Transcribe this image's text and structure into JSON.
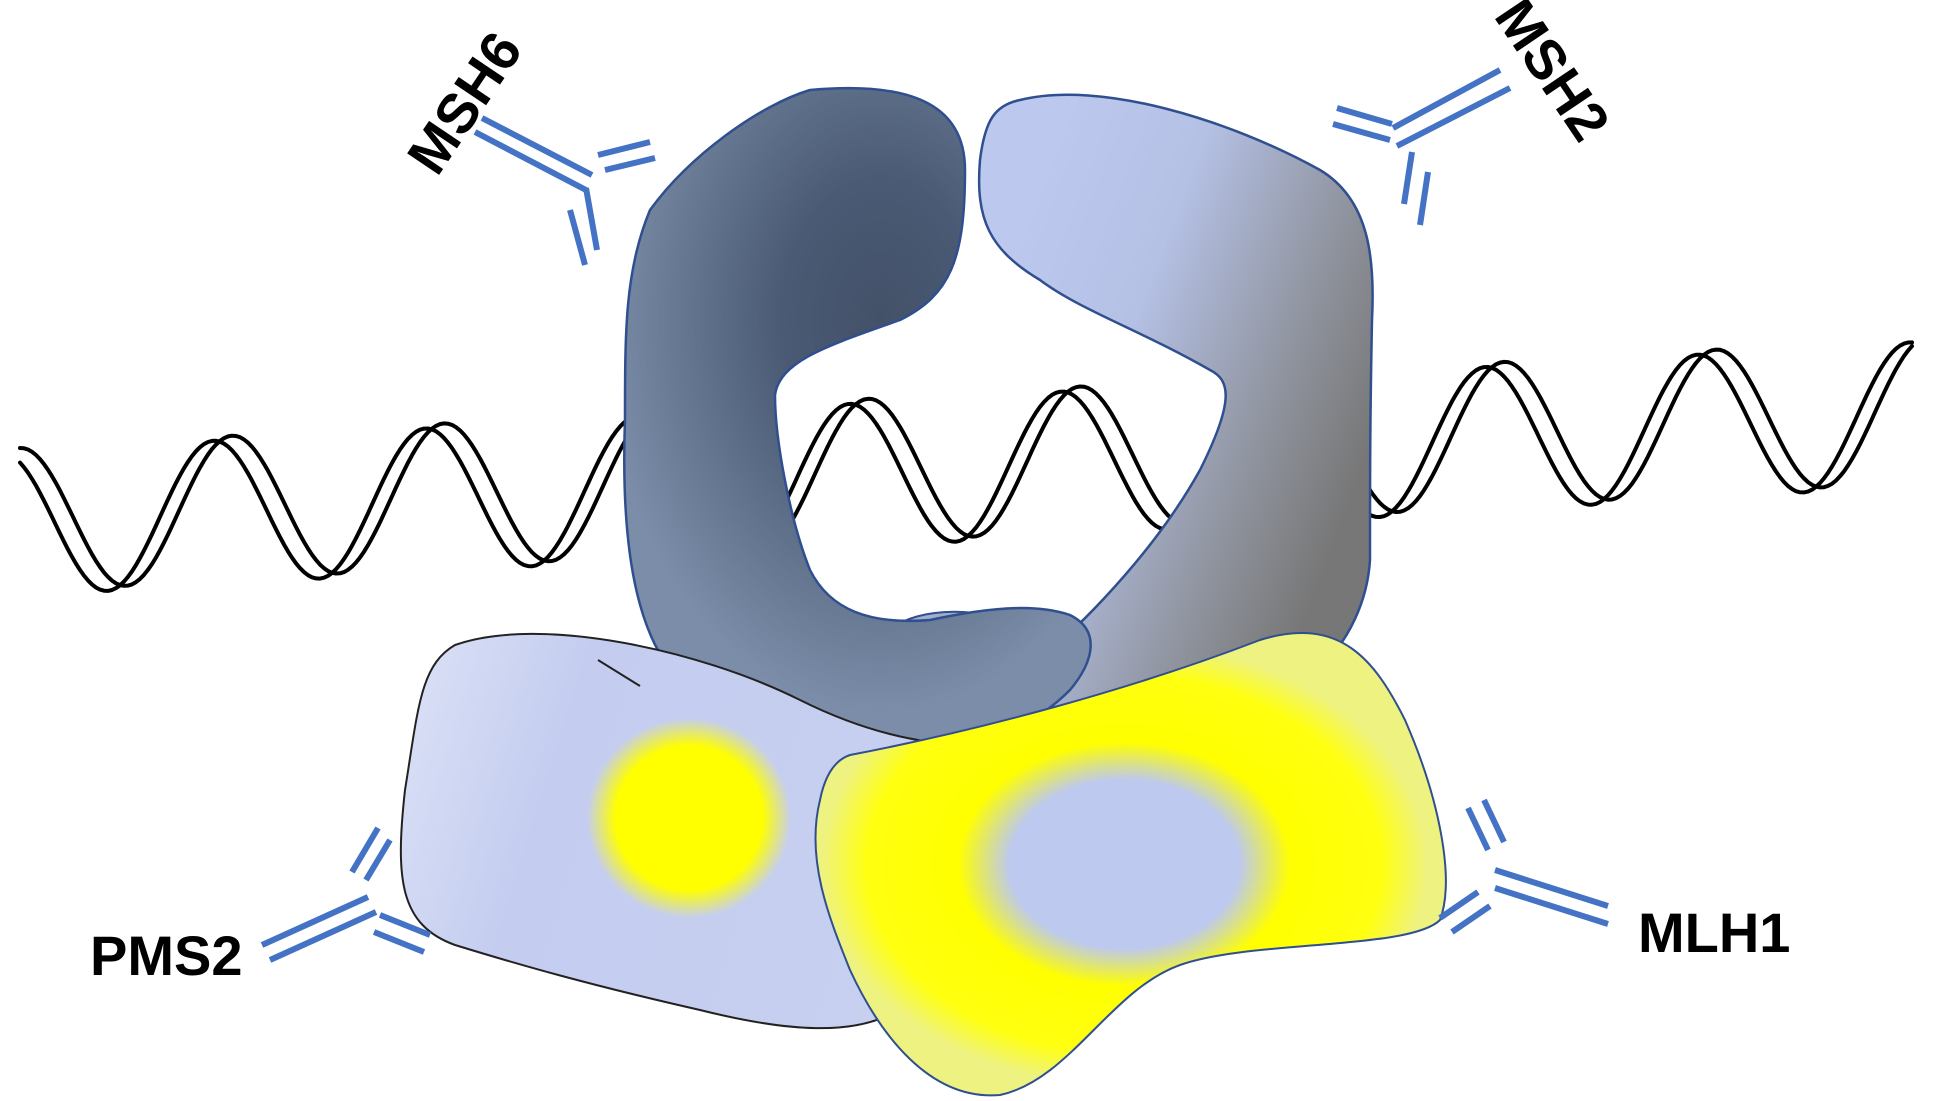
{
  "labels": {
    "msh6": "MSH6",
    "msh2": "MSH2",
    "pms2": "PMS2",
    "mlh1": "MLH1"
  },
  "colors": {
    "antibody": "#4472C4",
    "msh6_light": "#7B8DA8",
    "msh6_dark": "#435168",
    "msh2_light": "#BCC8EE",
    "msh2_dark": "#7A7A7A",
    "pms2_fill": "#C5CEF0",
    "mlh1_fill": "#FFFF00",
    "mlh1_core": "#BDC9EE",
    "dna_stroke": "#000000"
  },
  "icons": [
    "antibody-icon",
    "dna-helix-icon"
  ]
}
